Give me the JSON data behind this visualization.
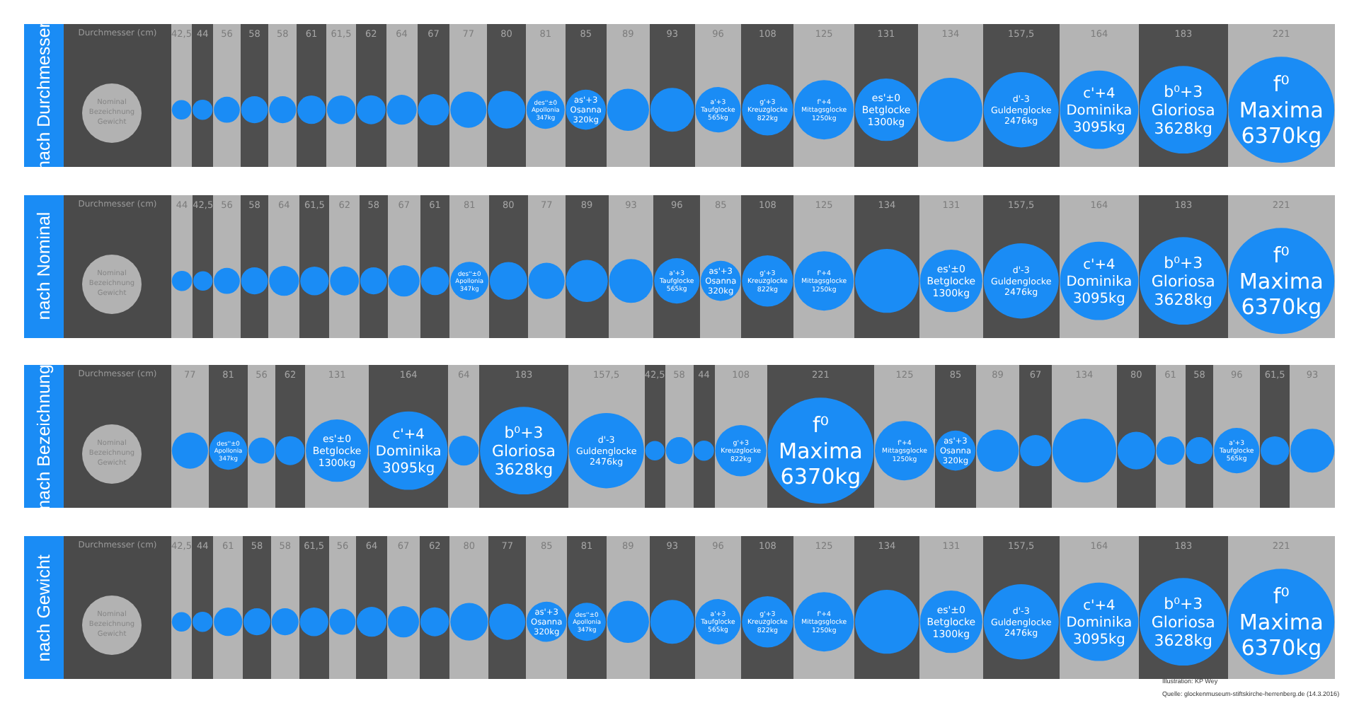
{
  "chart_data": [
    {
      "type": "other",
      "title": "nach Durchmesser",
      "ylabel": "Durchmesser (cm)",
      "legend_title": "Nominal\nBezeichnung\nGewicht",
      "color": "#1a8cf5",
      "categories": [
        null,
        null,
        null,
        null,
        null,
        null,
        null,
        null,
        null,
        null,
        null,
        null,
        "des''±0\nApollonia\n347kg",
        "as'+3\nOsanna\n320kg",
        null,
        null,
        "a'+3\nTaufglocke\n565kg",
        "g'+3\nKreuzglocke\n822kg",
        "f'+4\nMittagsglocke\n1250kg",
        "es'±0\nBetglocke\n1300kg",
        null,
        "d'-3\nGuldenglocke\n2476kg",
        "c'+4\nDominika\n3095kg",
        "b⁰+3\nGloriosa\n3628kg",
        "f⁰\nMaxima\n6370kg"
      ],
      "values": [
        42.5,
        44,
        56,
        58,
        58,
        61,
        61.5,
        62,
        64,
        67,
        77,
        80,
        81,
        85,
        89,
        93,
        96,
        108,
        125,
        131,
        134,
        157.5,
        164,
        183,
        221
      ],
      "value_labels": [
        "42,5",
        "44",
        "56",
        "58",
        "58",
        "61",
        "61,5",
        "62",
        "64",
        "67",
        "77",
        "80",
        "81",
        "85",
        "89",
        "93",
        "96",
        "108",
        "125",
        "131",
        "134",
        "157,5",
        "164",
        "183",
        "221"
      ]
    },
    {
      "type": "other",
      "title": "nach Nominal",
      "ylabel": "Durchmesser (cm)",
      "legend_title": "Nominal\nBezeichnung\nGewicht",
      "color": "#1a8cf5",
      "categories": [
        null,
        null,
        null,
        null,
        null,
        null,
        null,
        null,
        null,
        null,
        "des''±0\nApollonia\n347kg",
        null,
        null,
        null,
        null,
        "a'+3\nTaufglocke\n565kg",
        "as'+3\nOsanna\n320kg",
        "g'+3\nKreuzglocke\n822kg",
        "f'+4\nMittagsglocke\n1250kg",
        null,
        "es'±0\nBetglocke\n1300kg",
        "d'-3\nGuldenglocke\n2476kg",
        "c'+4\nDominika\n3095kg",
        "b⁰+3\nGloriosa\n3628kg",
        "f⁰\nMaxima\n6370kg"
      ],
      "values": [
        44,
        42.5,
        56,
        58,
        64,
        61.5,
        62,
        58,
        67,
        61,
        81,
        80,
        77,
        89,
        93,
        96,
        85,
        108,
        125,
        134,
        131,
        157.5,
        164,
        183,
        221
      ],
      "value_labels": [
        "44",
        "42,5",
        "56",
        "58",
        "64",
        "61,5",
        "62",
        "58",
        "67",
        "61",
        "81",
        "80",
        "77",
        "89",
        "93",
        "96",
        "85",
        "108",
        "125",
        "134",
        "131",
        "157,5",
        "164",
        "183",
        "221"
      ]
    },
    {
      "type": "other",
      "title": "nach Bezeichnung",
      "ylabel": "Durchmesser (cm)",
      "legend_title": "Nominal\nBezeichnung\nGewicht",
      "color": "#1a8cf5",
      "categories": [
        null,
        "des''±0\nApollonia\n347kg",
        null,
        null,
        "es'±0\nBetglocke\n1300kg",
        "c'+4\nDominika\n3095kg",
        null,
        "b⁰+3\nGloriosa\n3628kg",
        "d'-3\nGuldenglocke\n2476kg",
        null,
        null,
        null,
        "g'+3\nKreuzglocke\n822kg",
        "f⁰\nMaxima\n6370kg",
        "f'+4\nMittagsglocke\n1250kg",
        "as'+3\nOsanna\n320kg",
        null,
        null,
        null,
        null,
        null,
        null,
        "a'+3\nTaufglocke\n565kg",
        null,
        null
      ],
      "values": [
        77,
        81,
        56,
        62,
        131,
        164,
        64,
        183,
        157.5,
        42.5,
        58,
        44,
        108,
        221,
        125,
        85,
        89,
        67,
        134,
        80,
        61,
        58,
        96,
        61.5,
        93
      ],
      "value_labels": [
        "77",
        "81",
        "56",
        "62",
        "131",
        "164",
        "64",
        "183",
        "157,5",
        "42,5",
        "58",
        "44",
        "108",
        "221",
        "125",
        "85",
        "89",
        "67",
        "134",
        "80",
        "61",
        "58",
        "96",
        "61,5",
        "93"
      ]
    },
    {
      "type": "other",
      "title": "nach Gewicht",
      "ylabel": "Durchmesser (cm)",
      "legend_title": "Nominal\nBezeichnung\nGewicht",
      "color": "#1a8cf5",
      "categories": [
        null,
        null,
        null,
        null,
        null,
        null,
        null,
        null,
        null,
        null,
        null,
        null,
        "as'+3\nOsanna\n320kg",
        "des''±0\nApollonia\n347kg",
        null,
        null,
        "a'+3\nTaufglocke\n565kg",
        "g'+3\nKreuzglocke\n822kg",
        "f'+4\nMittagsglocke\n1250kg",
        null,
        "es'±0\nBetglocke\n1300kg",
        "d'-3\nGuldenglocke\n2476kg",
        "c'+4\nDominika\n3095kg",
        "b⁰+3\nGloriosa\n3628kg",
        "f⁰\nMaxima\n6370kg"
      ],
      "values": [
        42.5,
        44,
        61,
        58,
        58,
        61.5,
        56,
        64,
        67,
        62,
        80,
        77,
        85,
        81,
        89,
        93,
        96,
        108,
        125,
        134,
        131,
        157.5,
        164,
        183,
        221
      ],
      "value_labels": [
        "42,5",
        "44",
        "61",
        "58",
        "58",
        "61,5",
        "56",
        "64",
        "67",
        "62",
        "80",
        "77",
        "85",
        "81",
        "89",
        "93",
        "96",
        "108",
        "125",
        "134",
        "131",
        "157,5",
        "164",
        "183",
        "221"
      ],
      "annotations": [
        "Illustration: KP Wey",
        "Quelle: glockenmuseum-stiftskirche-herrenberg.de (14.3.2016)"
      ]
    }
  ]
}
